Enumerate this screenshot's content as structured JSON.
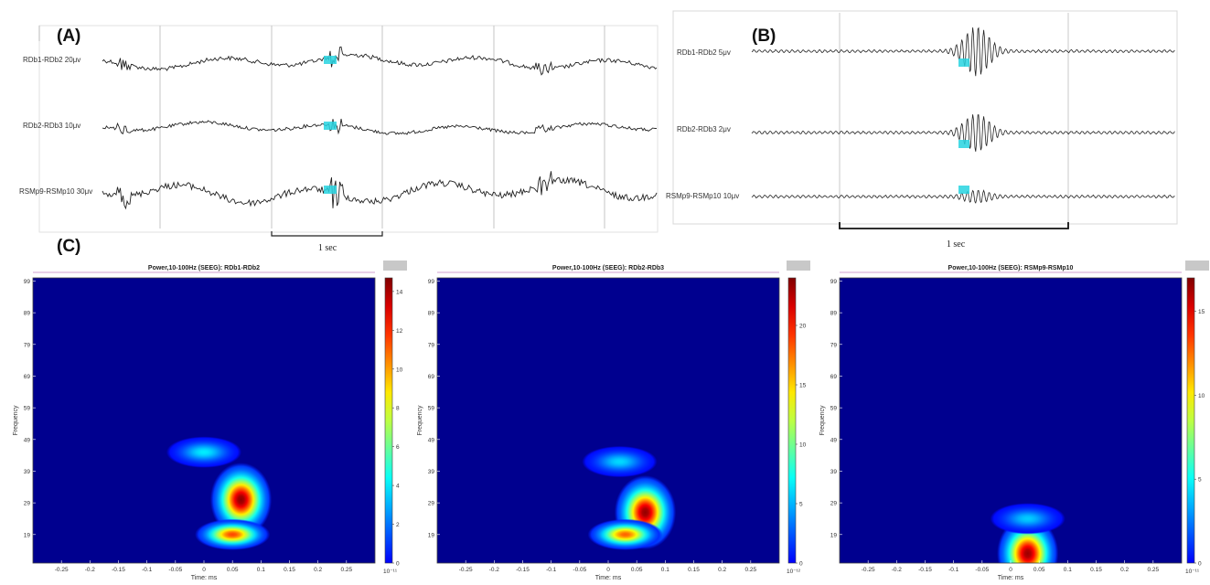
{
  "panels": {
    "a_label": "(A)",
    "b_label": "(B)",
    "c_label": "(C)"
  },
  "panel_a": {
    "channels": [
      "RDb1-RDb2 20μv",
      "RDb2-RDb3 10μv",
      "RSMp9-RSMp10 30μv"
    ],
    "scale_label": "1 sec"
  },
  "panel_b": {
    "channels": [
      "RDb1-RDb2 5μv",
      "RDb2-RDb3 2μv",
      "RSMp9-RSMp10 10μv"
    ],
    "scale_label": "1 sec"
  },
  "colors": {
    "trace": "#222222",
    "marker": "#27d3e0",
    "map_background": "#00008f"
  },
  "chart_data": [
    {
      "type": "heatmap",
      "title": "Power,10-100Hz (SEEG): RDb1-RDb2",
      "xlabel": "Time: ms",
      "ylabel": "Frequency",
      "x_ticks": [
        "-0.25",
        "-0.2",
        "-0.15",
        "-0.1",
        "-0.05",
        "0",
        "0.05",
        "0.1",
        "0.15",
        "0.2",
        "0.25"
      ],
      "y_ticks": [
        "19",
        "29",
        "39",
        "49",
        "59",
        "69",
        "79",
        "89",
        "99"
      ],
      "xlim": [
        -0.3,
        0.3
      ],
      "ylim": [
        10,
        100
      ],
      "colorbar_ticks": [
        "0",
        "2",
        "4",
        "6",
        "8",
        "10",
        "12",
        "14"
      ],
      "colorbar_max": 14.7,
      "colorbar_exponent": "10⁻¹¹",
      "blobs": [
        {
          "t": 0.065,
          "f": 30,
          "peak": 14.5
        },
        {
          "t": 0.05,
          "f": 19,
          "peak": 11.5
        },
        {
          "t": 0.0,
          "f": 45,
          "peak": 4
        }
      ]
    },
    {
      "type": "heatmap",
      "title": "Power,10-100Hz (SEEG): RDb2-RDb3",
      "xlabel": "Time: ms",
      "ylabel": "Frequency",
      "x_ticks": [
        "-0.25",
        "-0.2",
        "-0.15",
        "-0.1",
        "-0.05",
        "0",
        "0.05",
        "0.1",
        "0.15",
        "0.2",
        "0.25"
      ],
      "y_ticks": [
        "19",
        "29",
        "39",
        "49",
        "59",
        "69",
        "79",
        "89",
        "99"
      ],
      "xlim": [
        -0.3,
        0.3
      ],
      "ylim": [
        10,
        100
      ],
      "colorbar_ticks": [
        "0",
        "5",
        "10",
        "15",
        "20"
      ],
      "colorbar_max": 24,
      "colorbar_exponent": "10⁻¹²",
      "blobs": [
        {
          "t": 0.065,
          "f": 26,
          "peak": 23.5
        },
        {
          "t": 0.03,
          "f": 19,
          "peak": 18
        },
        {
          "t": 0.02,
          "f": 42,
          "peak": 6
        }
      ]
    },
    {
      "type": "heatmap",
      "title": "Power,10-100Hz (SEEG): RSMp9-RSMp10",
      "xlabel": "Time: ms",
      "ylabel": "Frequency",
      "x_ticks": [
        "-0.25",
        "-0.2",
        "-0.15",
        "-0.1",
        "-0.05",
        "0",
        "0.05",
        "0.1",
        "0.15",
        "0.2",
        "0.25"
      ],
      "y_ticks": [
        "19",
        "29",
        "39",
        "49",
        "59",
        "69",
        "79",
        "89",
        "99"
      ],
      "xlim": [
        -0.3,
        0.3
      ],
      "ylim": [
        10,
        100
      ],
      "colorbar_ticks": [
        "0",
        "5",
        "10",
        "15"
      ],
      "colorbar_max": 17,
      "colorbar_exponent": "10⁻¹¹",
      "blobs": [
        {
          "t": 0.03,
          "f": 13,
          "peak": 16.5
        },
        {
          "t": 0.03,
          "f": 24,
          "peak": 4
        }
      ]
    }
  ]
}
